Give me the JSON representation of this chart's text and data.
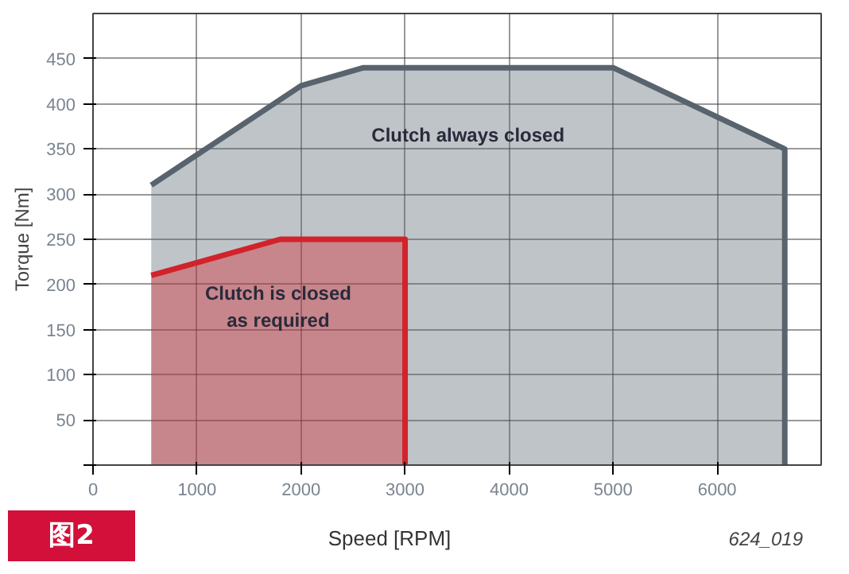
{
  "chart_data": {
    "type": "area",
    "xlabel": "Speed [RPM]",
    "ylabel": "Torque [Nm]",
    "xlim": [
      0,
      7000
    ],
    "ylim": [
      0,
      500
    ],
    "xticks": [
      0,
      1000,
      2000,
      3000,
      4000,
      5000,
      6000
    ],
    "yticks": [
      {
        "value": 0,
        "label": null
      },
      50,
      100,
      150,
      200,
      250,
      300,
      350,
      400,
      450
    ],
    "grid": true,
    "series": [
      {
        "name": "Clutch always closed",
        "color": "#58636e",
        "x": [
          560,
          2000,
          2600,
          5000,
          6650
        ],
        "values": [
          310,
          420,
          440,
          440,
          350
        ]
      },
      {
        "name": "Clutch is closed\nas required",
        "color": "#d2232a",
        "x": [
          560,
          1800,
          3000
        ],
        "values": [
          210,
          250,
          250
        ]
      }
    ],
    "annotations": [
      "图2",
      "624_019"
    ]
  }
}
